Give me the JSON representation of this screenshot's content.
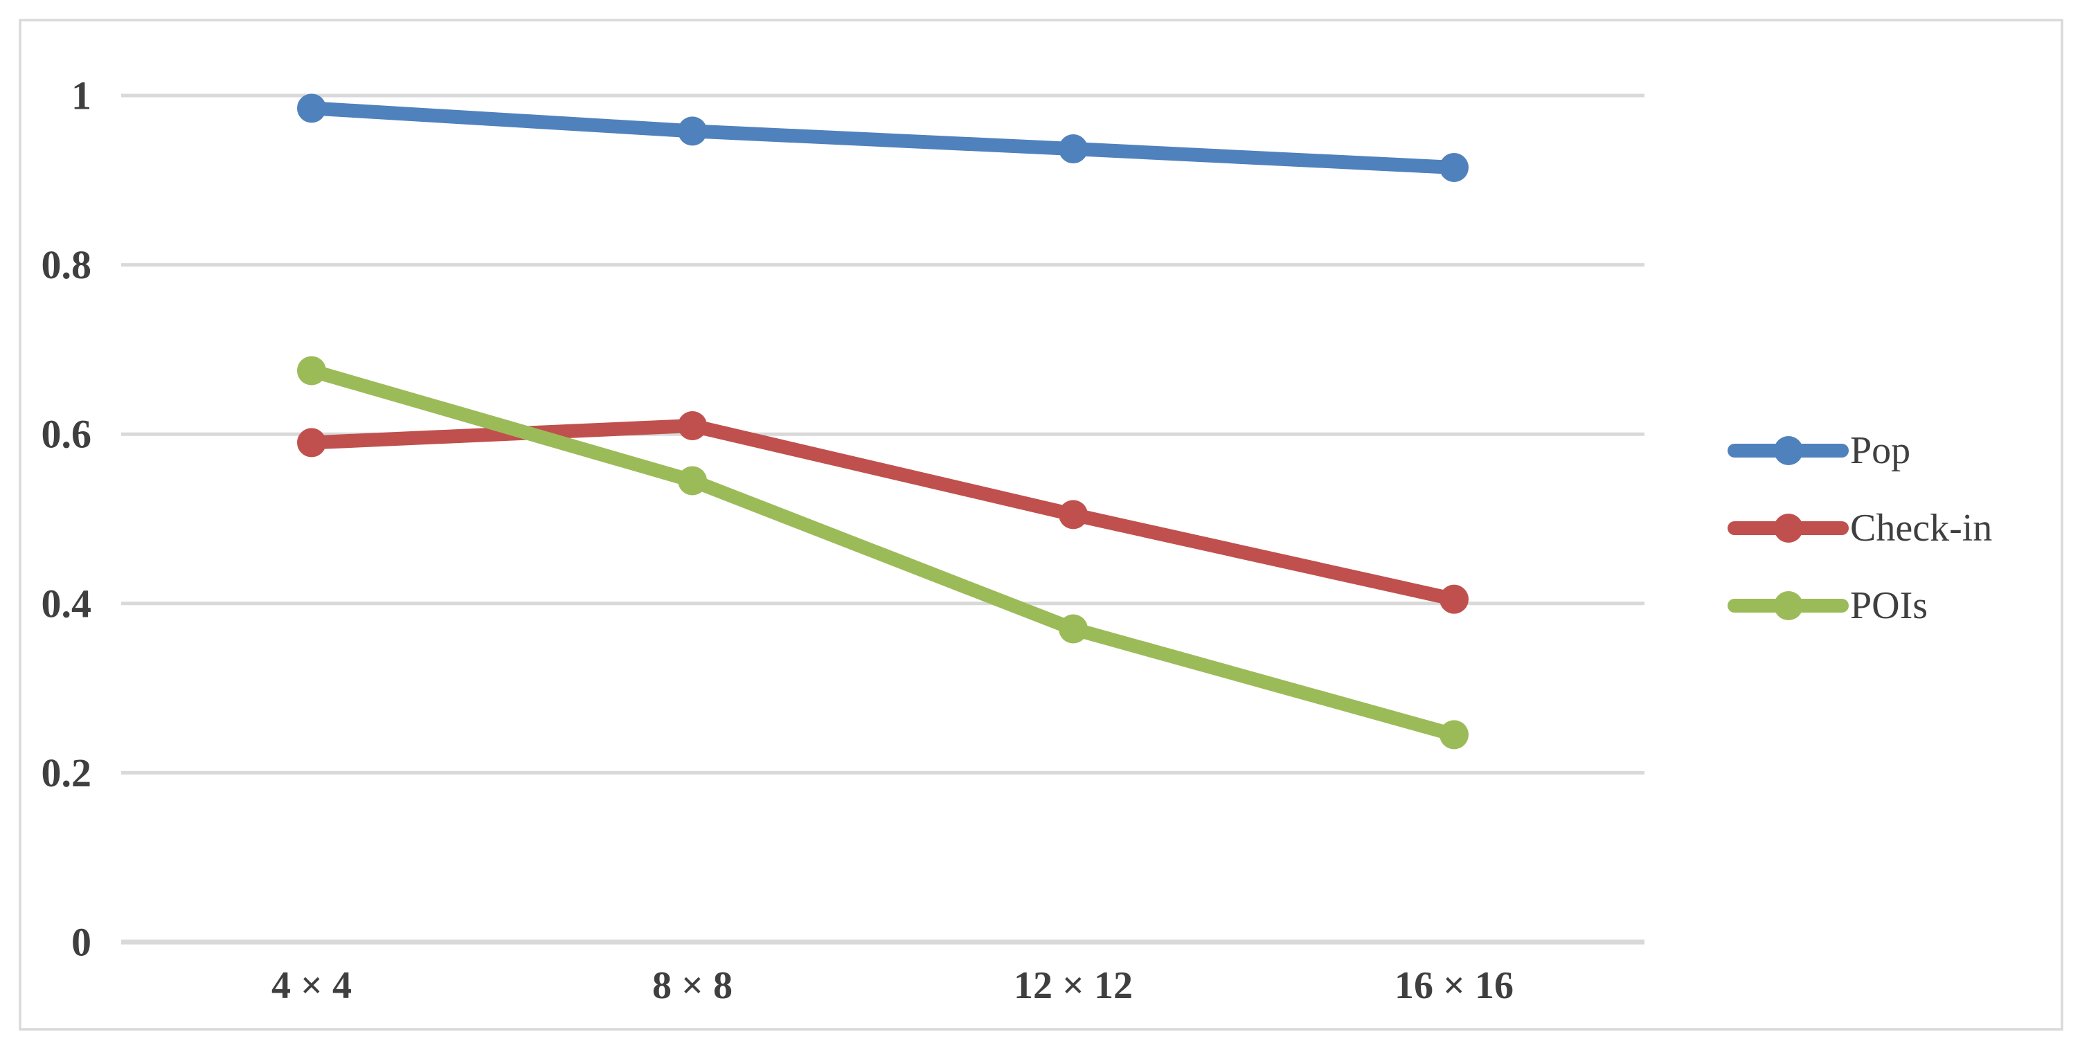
{
  "chart_data": {
    "type": "line",
    "title": "",
    "xlabel": "",
    "ylabel": "",
    "categories": [
      "4 × 4",
      "8 × 8",
      "12 × 12",
      "16 × 16"
    ],
    "series": [
      {
        "name": "Pop",
        "color": "#4F81BD",
        "values": [
          0.985,
          0.958,
          0.937,
          0.915
        ]
      },
      {
        "name": "Check-in",
        "color": "#C0504D",
        "values": [
          0.59,
          0.61,
          0.505,
          0.405
        ]
      },
      {
        "name": "POIs",
        "color": "#9BBB59",
        "values": [
          0.675,
          0.545,
          0.37,
          0.245
        ]
      }
    ],
    "yticks": [
      {
        "value": 0,
        "label": "0"
      },
      {
        "value": 0.2,
        "label": "0.2"
      },
      {
        "value": 0.4,
        "label": "0.4"
      },
      {
        "value": 0.6,
        "label": "0.6"
      },
      {
        "value": 0.8,
        "label": "0.8"
      },
      {
        "value": 1,
        "label": "1"
      }
    ],
    "ylim": [
      0,
      1
    ],
    "grid": true,
    "legend_position": "right",
    "grid_color": "#D9D9D9",
    "axis_line_color": "#D9D9D9",
    "border_color": "#D9D9D9",
    "text_color": "#3F3F3F"
  }
}
